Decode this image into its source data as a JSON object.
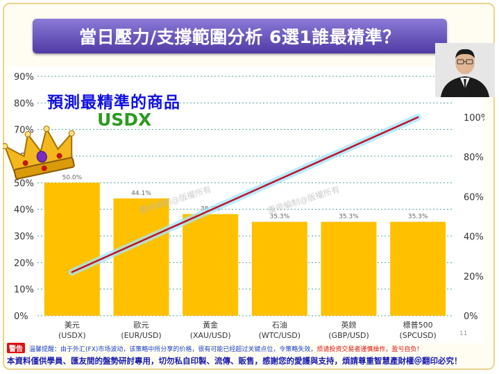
{
  "title": "當日壓力/支撐範圍分析 6選1誰最精準？",
  "annotation": {
    "headline": "預測最精準的商品",
    "symbol": "USDX"
  },
  "watermark": "康帝編制@版權所有",
  "page_number": "11",
  "footer": {
    "stamp": "警告",
    "warning": "溫馨提醒：由于外汇(FX)市场波动，该策略中所分享的价格，很有可能已经超过关键点位，令策略失效，",
    "warning_red": "烦请投资交易者谨慎操作，盈亏自负！",
    "note": "本資料僅供學員、匯友間的盤勢研討專用，切勿私自印製、流傳、販售，感謝您的愛護與支持，煩請尊重智慧產財權＠翻印必究！"
  },
  "colors": {
    "bar": "#ffc000",
    "line": "#c0102a",
    "glow": "#9fe8ff",
    "grid": "#4da3a3"
  },
  "chart_data": {
    "type": "bar",
    "categories": [
      [
        "美元",
        "(USDX)"
      ],
      [
        "歐元",
        "(EUR/USD)"
      ],
      [
        "黃金",
        "(XAU/USD)"
      ],
      [
        "石油",
        "(WTC/USD)"
      ],
      [
        "英鎊",
        "(GBP/USD)"
      ],
      [
        "標普500",
        "(SPCUSD)"
      ]
    ],
    "values": [
      50.0,
      44.1,
      38.2,
      35.3,
      35.3,
      35.3
    ],
    "data_labels": [
      "50.0%",
      "44.1%",
      "38.2%",
      "35.3%",
      "35.3%",
      "35.3%"
    ],
    "ylim": [
      0,
      90
    ],
    "yticks": [
      "0%",
      "10%",
      "20%",
      "30%",
      "40%",
      "50%",
      "60%",
      "70%",
      "80%",
      "90%"
    ],
    "y2lim": [
      0,
      100
    ],
    "y2ticks": [
      "0%",
      "20%",
      "40%",
      "60%",
      "80%",
      "100%"
    ],
    "trend_line": {
      "y2_start": 22,
      "y2_end": 100
    },
    "grid": true
  }
}
